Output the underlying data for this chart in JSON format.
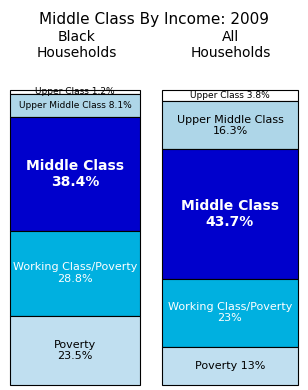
{
  "title": "Middle Class By Income: 2009",
  "title_fontsize": 11,
  "col1_header": "Black\nHouseholds",
  "col2_header": "All\nHouseholds",
  "header_fontsize": 10,
  "col1_segments": [
    {
      "label": "Upper Class 1.2%",
      "value": 1.2,
      "color": "#ffffff",
      "text_color": "#000000",
      "fontsize": 6.5,
      "bold": false
    },
    {
      "label": "Upper Middle Class 8.1%",
      "value": 8.1,
      "color": "#aed6e8",
      "text_color": "#000000",
      "fontsize": 6.5,
      "bold": false
    },
    {
      "label": "Middle Class\n38.4%",
      "value": 38.4,
      "color": "#0000cc",
      "text_color": "#ffffff",
      "fontsize": 10,
      "bold": true
    },
    {
      "label": "Working Class/Poverty\n28.8%",
      "value": 28.8,
      "color": "#00b0e0",
      "text_color": "#ffffff",
      "fontsize": 8,
      "bold": false
    },
    {
      "label": "Poverty\n23.5%",
      "value": 23.5,
      "color": "#c0dff0",
      "text_color": "#000000",
      "fontsize": 8,
      "bold": false
    }
  ],
  "col2_segments": [
    {
      "label": "Upper Class 3.8%",
      "value": 3.8,
      "color": "#ffffff",
      "text_color": "#000000",
      "fontsize": 6.5,
      "bold": false
    },
    {
      "label": "Upper Middle Class\n16.3%",
      "value": 16.3,
      "color": "#aed6e8",
      "text_color": "#000000",
      "fontsize": 8,
      "bold": false
    },
    {
      "label": "Middle Class\n43.7%",
      "value": 43.7,
      "color": "#0000cc",
      "text_color": "#ffffff",
      "fontsize": 10,
      "bold": true
    },
    {
      "label": "Working Class/Poverty\n23%",
      "value": 23.0,
      "color": "#00b0e0",
      "text_color": "#ffffff",
      "fontsize": 8,
      "bold": false
    },
    {
      "label": "Poverty 13%",
      "value": 13.0,
      "color": "#c0dff0",
      "text_color": "#000000",
      "fontsize": 8,
      "bold": false
    }
  ],
  "background_color": "#ffffff",
  "bar_edge_color": "#000000",
  "fig_width": 3.08,
  "fig_height": 3.9,
  "dpi": 100
}
